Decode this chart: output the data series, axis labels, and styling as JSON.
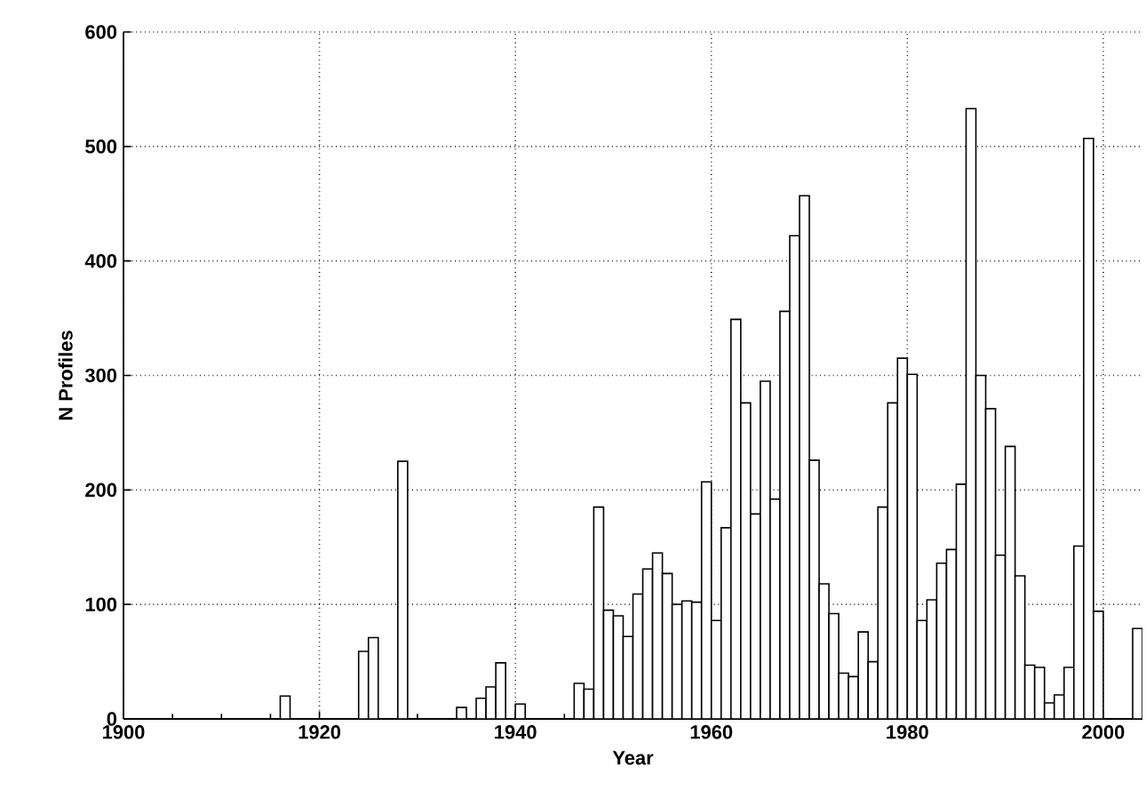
{
  "chart_data": {
    "type": "histogram",
    "xlabel": "Year",
    "ylabel": "N Profiles",
    "bins": [
      1900,
      1901,
      1902,
      1903,
      1904,
      1905,
      1906,
      1907,
      1908,
      1909,
      1910,
      1911,
      1912,
      1913,
      1914,
      1915,
      1916,
      1917,
      1918,
      1919,
      1920,
      1921,
      1922,
      1923,
      1924,
      1925,
      1926,
      1927,
      1928,
      1929,
      1930,
      1931,
      1932,
      1933,
      1934,
      1935,
      1936,
      1937,
      1938,
      1939,
      1940,
      1941,
      1942,
      1943,
      1944,
      1945,
      1946,
      1947,
      1948,
      1949,
      1950,
      1951,
      1952,
      1953,
      1954,
      1955,
      1956,
      1957,
      1958,
      1959,
      1960,
      1961,
      1962,
      1963,
      1964,
      1965,
      1966,
      1967,
      1968,
      1969,
      1970,
      1971,
      1972,
      1973,
      1974,
      1975,
      1976,
      1977,
      1978,
      1979,
      1980,
      1981,
      1982,
      1983,
      1984,
      1985,
      1986,
      1987,
      1988,
      1989,
      1990,
      1991,
      1992,
      1993,
      1994,
      1995,
      1996,
      1997,
      1998,
      1999,
      2000,
      2001,
      2002,
      2003,
      2004
    ],
    "values": [
      0,
      0,
      0,
      0,
      0,
      0,
      0,
      0,
      0,
      0,
      0,
      0,
      0,
      0,
      0,
      0,
      20,
      0,
      0,
      0,
      0,
      0,
      0,
      0,
      59,
      71,
      0,
      0,
      225,
      0,
      0,
      0,
      0,
      0,
      10,
      0,
      18,
      28,
      49,
      0,
      13,
      0,
      0,
      0,
      0,
      0,
      31,
      26,
      185,
      95,
      90,
      72,
      109,
      131,
      145,
      127,
      100,
      103,
      102,
      207,
      86,
      167,
      349,
      276,
      179,
      295,
      192,
      356,
      422,
      457,
      226,
      118,
      92,
      40,
      37,
      76,
      50,
      185,
      276,
      315,
      301,
      86,
      104,
      136,
      148,
      205,
      533,
      300,
      271,
      143,
      238,
      125,
      47,
      45,
      14,
      21,
      45,
      151,
      507,
      94,
      0,
      0,
      0,
      79
    ],
    "color": "#ffffff",
    "xlim": [
      1900,
      2004
    ],
    "xticks": [
      1900,
      1920,
      1940,
      1960,
      1980,
      2000
    ],
    "ylim": [
      0,
      600
    ],
    "yticks": [
      0,
      100,
      200,
      300,
      400,
      500,
      600
    ],
    "grid": true
  }
}
